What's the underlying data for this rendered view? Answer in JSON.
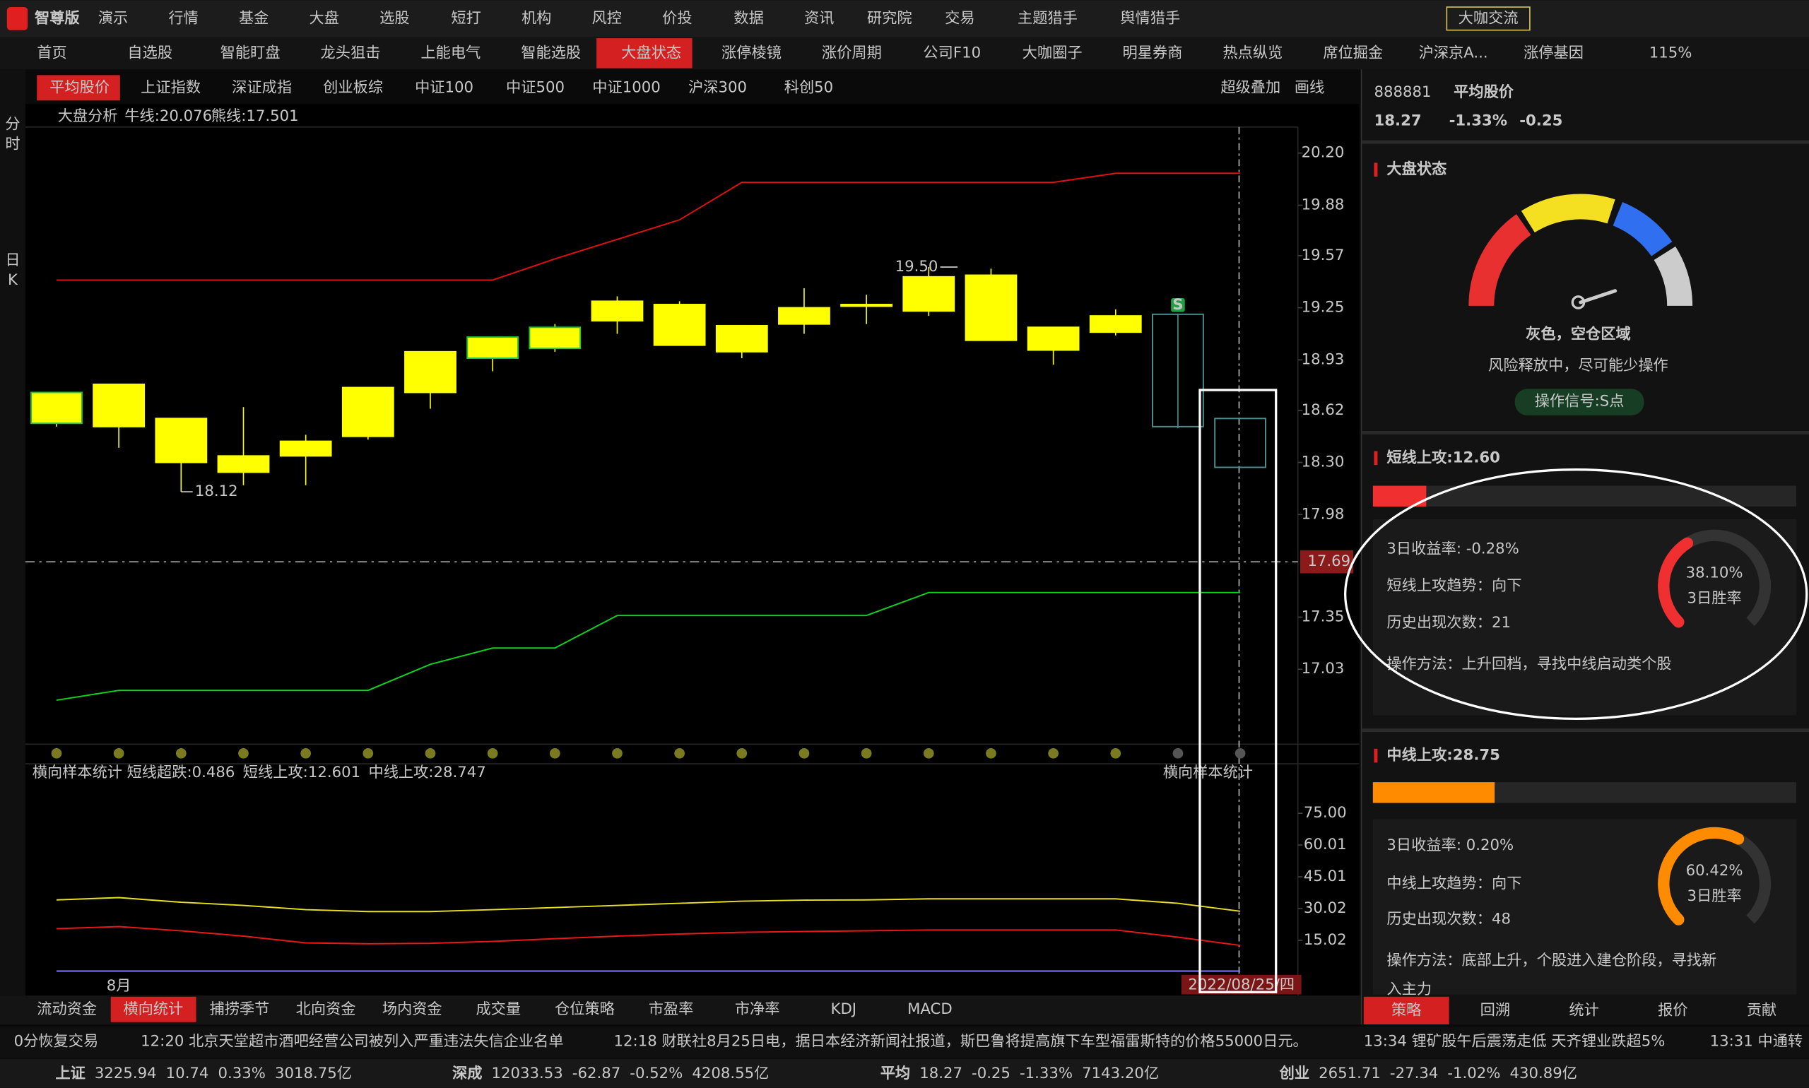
{
  "menu": {
    "logo": "智尊版",
    "demo": "演示",
    "items": [
      "行情",
      "基金",
      "大盘",
      "选股",
      "短打",
      "机构",
      "风控",
      "价投",
      "数据",
      "资讯",
      "研究院",
      "交易",
      "主题猎手",
      "舆情猎手"
    ],
    "guest": "大咖交流"
  },
  "tabs": {
    "items": [
      "首页",
      "自选股",
      "智能盯盘",
      "龙头狙击",
      "上能电气",
      "智能选股",
      "大盘状态",
      "涨停棱镜",
      "涨价周期",
      "公司F10",
      "大咖圈子",
      "明星券商",
      "热点纵览",
      "席位掘金",
      "沪深京A...",
      "涨停基因"
    ],
    "active": 6,
    "zoom": "115%"
  },
  "sub_tabs": {
    "items": [
      "平均股价",
      "上证指数",
      "深证成指",
      "创业板综",
      "中证100",
      "中证500",
      "中证1000",
      "沪深300",
      "科创50"
    ],
    "active": 0,
    "tools": [
      "超级叠加",
      "画线"
    ]
  },
  "side_tabs": [
    "分时",
    "日K"
  ],
  "chart": {
    "indicator": "大盘分析",
    "bull_label": "牛线:20.076",
    "bear_label": "熊线:17.501",
    "color": "#ffff00",
    "ylim": [
      16.57,
      20.36
    ],
    "yticks": [
      {
        "value": 20.2,
        "label": "20.20"
      },
      19.88,
      19.57,
      19.25,
      18.93,
      18.62,
      {
        "value": 18.3,
        "label": "18.30"
      },
      17.98,
      17.35,
      17.03
    ],
    "current_price": 17.69,
    "candles": [
      {
        "open": 18.73,
        "close": 18.54,
        "high": 18.73,
        "low": 18.52,
        "outline": "#1fc441"
      },
      {
        "open": 18.78,
        "close": 18.52,
        "high": 18.78,
        "low": 18.39
      },
      {
        "open": 18.57,
        "close": 18.3,
        "high": 18.57,
        "low": 18.12,
        "low_label": "18.12"
      },
      {
        "open": 18.34,
        "close": 18.24,
        "high": 18.64,
        "low": 18.16
      },
      {
        "open": 18.43,
        "close": 18.34,
        "high": 18.47,
        "low": 18.16
      },
      {
        "open": 18.76,
        "close": 18.46,
        "high": 18.76,
        "low": 18.44
      },
      {
        "open": 18.98,
        "close": 18.73,
        "high": 18.98,
        "low": 18.63
      },
      {
        "open": 19.07,
        "close": 18.94,
        "high": 19.07,
        "low": 18.86,
        "outline": "#1fc441"
      },
      {
        "open": 19.13,
        "close": 19.0,
        "high": 19.15,
        "low": 18.98,
        "outline": "#1fc441"
      },
      {
        "open": 19.29,
        "close": 19.17,
        "high": 19.32,
        "low": 19.09
      },
      {
        "open": 19.27,
        "close": 19.02,
        "high": 19.29,
        "low": 19.02
      },
      {
        "open": 19.14,
        "close": 18.98,
        "high": 19.14,
        "low": 18.94
      },
      {
        "open": 19.25,
        "close": 19.15,
        "high": 19.37,
        "low": 19.09
      },
      {
        "open": 19.27,
        "close": 19.26,
        "high": 19.33,
        "low": 19.15
      },
      {
        "open": 19.44,
        "close": 19.23,
        "high": 19.5,
        "low": 19.2,
        "high_label": "19.50"
      },
      {
        "open": 19.45,
        "close": 19.05,
        "high": 19.49,
        "low": 19.05
      },
      {
        "open": 19.13,
        "close": 18.99,
        "high": 19.13,
        "low": 18.9
      },
      {
        "open": 19.2,
        "close": 19.1,
        "high": 19.24,
        "low": 19.08
      },
      {
        "open": 19.21,
        "close": 18.52,
        "high": 19.21,
        "low": 18.51,
        "fill": "none",
        "outline": "#4a8f8f",
        "signal": "S"
      }
    ],
    "projected": {
      "open": 18.57,
      "close": 18.27,
      "outline": "#4a8f8f"
    },
    "bull_line": [
      19.42,
      19.42,
      19.42,
      19.42,
      19.42,
      19.42,
      19.42,
      19.42,
      19.55,
      19.67,
      19.79,
      20.02,
      20.02,
      20.02,
      20.02,
      20.02,
      20.02,
      20.076,
      20.076,
      20.076
    ],
    "bull_color": "#e01010",
    "bear_line": [
      16.84,
      16.9,
      16.9,
      16.9,
      16.9,
      16.9,
      17.06,
      17.16,
      17.16,
      17.36,
      17.36,
      17.36,
      17.36,
      17.36,
      17.501,
      17.501,
      17.501,
      17.501,
      17.501,
      17.501
    ],
    "bear_color": "#10d020",
    "month_label": "8月",
    "date": "2022/08/25/四"
  },
  "lower": {
    "title": "横向样本统计",
    "ylim": [
      -4,
      88.6
    ],
    "yticks": [
      {
        "value": 75,
        "label": "75.00"
      },
      60.01,
      45.01,
      30.02,
      15.02
    ],
    "series": [
      {
        "name": "短线超跌:0.486",
        "color": "#7b7bff",
        "values": [
          0.5,
          0.5,
          0.5,
          0.5,
          0.5,
          0.5,
          0.5,
          0.5,
          0.5,
          0.5,
          0.5,
          0.5,
          0.5,
          0.5,
          0.5,
          0.5,
          0.5,
          0.5,
          0.5,
          0.486
        ]
      },
      {
        "name": "短线上攻:12.601",
        "color": "#e81818",
        "values": [
          20.5,
          21.5,
          19.5,
          17,
          13.8,
          13.4,
          13.6,
          14.5,
          15.8,
          17,
          18,
          18.8,
          19.2,
          19.5,
          19.9,
          19.9,
          19.9,
          19.9,
          16.5,
          12.601
        ]
      },
      {
        "name": "中线上攻:28.747",
        "color": "#e8e020",
        "values": [
          34.1,
          35.2,
          33,
          31.5,
          29.5,
          28.6,
          28.6,
          29.5,
          30.5,
          31.5,
          32.5,
          33.5,
          34,
          34.1,
          34.6,
          34.6,
          34.6,
          34.6,
          32.5,
          28.747
        ]
      }
    ]
  },
  "bottom_tabs": {
    "items": [
      "流动资金",
      "横向统计",
      "捕捞季节",
      "北向资金",
      "场内资金",
      "成交量",
      "仓位策略",
      "市盈率",
      "市净率",
      "KDJ",
      "MACD"
    ],
    "active": 1
  },
  "panel": {
    "code": "888881",
    "name": "平均股价",
    "price": "18.27",
    "pct": "-1.33%",
    "change": "-0.25",
    "state_title": "大盘状态",
    "state": "灰色，空仓区域",
    "state_desc": "风险释放中，尽可能少操作",
    "signal": "操作信号:S点",
    "short": {
      "title": "短线上攻:12.60",
      "score": 12.6,
      "color": "#f03030",
      "lines": [
        "3日收益率: -0.28%",
        "短线上攻趋势：向下",
        "历史出现次数：21",
        "操作方法：上升回档，寻找中线启动类个股"
      ],
      "win_rate": 38.1,
      "win_rate_label": "38.10%",
      "win_rate_name": "3日胜率"
    },
    "mid": {
      "title": "中线上攻:28.75",
      "score": 28.75,
      "color": "#ff8c00",
      "lines": [
        "3日收益率: 0.20%",
        "中线上攻趋势：向下",
        "历史出现次数：48",
        "操作方法：底部上升，个股进入建仓阶段，寻找新",
        "入主力"
      ],
      "win_rate": 60.42,
      "win_rate_label": "60.42%",
      "win_rate_name": "3日胜率"
    },
    "tabs": [
      "策略",
      "回溯",
      "统计",
      "报价",
      "贡献"
    ],
    "active": 0
  },
  "news": [
    "0分恢复交易",
    "12:20 北京天堂超市酒吧经营公司被列入严重违法失信企业名单",
    "12:18 财联社8月25日电，据日本经济新闻社报道，斯巴鲁将提高旗下车型福雷斯特的价格55000日元。",
    "13:34 锂矿股午后震荡走低 天齐锂业跌超5%",
    "13:31 中通转"
  ],
  "indices": [
    {
      "name": "上证",
      "price": "3225.94",
      "change": "10.74",
      "pct": "0.33%",
      "amount": "3018.75亿",
      "color": "#ff3030"
    },
    {
      "name": "深成",
      "price": "12033.53",
      "change": "-62.87",
      "pct": "-0.52%",
      "amount": "4208.55亿",
      "color": "#20d040"
    },
    {
      "name": "平均",
      "price": "18.27",
      "change": "-0.25",
      "pct": "-1.33%",
      "amount": "7143.20亿",
      "color": "#20d040"
    },
    {
      "name": "创业",
      "price": "2651.71",
      "change": "-27.34",
      "pct": "-1.02%",
      "amount": "430.89亿",
      "color": "#20d040"
    }
  ]
}
